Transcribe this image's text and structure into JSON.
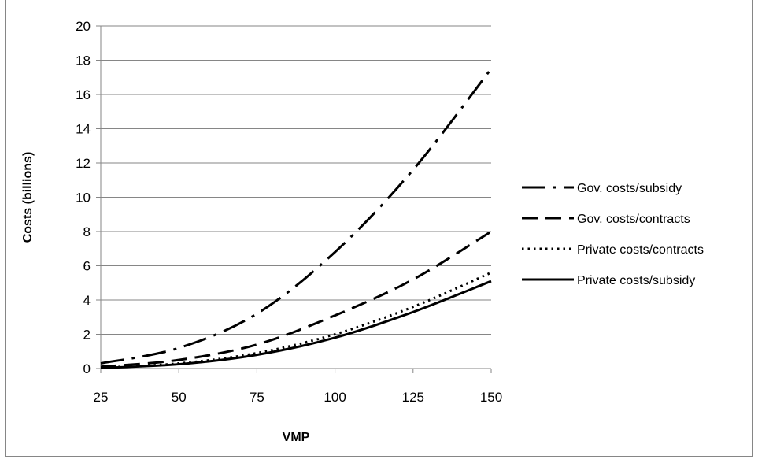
{
  "chart_data": {
    "type": "line",
    "title": "",
    "xlabel": "VMP",
    "ylabel": "Costs (billions)",
    "xlim": [
      25,
      150
    ],
    "ylim": [
      0,
      20
    ],
    "x_ticks": [
      25,
      50,
      75,
      100,
      125,
      150
    ],
    "y_ticks": [
      0,
      2,
      4,
      6,
      8,
      10,
      12,
      14,
      16,
      18,
      20
    ],
    "grid": "horizontal",
    "legend_position": "right",
    "x": [
      25,
      50,
      75,
      100,
      125,
      150
    ],
    "series": [
      {
        "name": "Gov. costs/subsidy",
        "style": "dash-dot",
        "color": "#000000",
        "values": [
          0.3,
          1.2,
          3.2,
          6.8,
          11.6,
          17.5
        ]
      },
      {
        "name": "Gov. costs/contracts",
        "style": "dashed",
        "color": "#000000",
        "values": [
          0.1,
          0.5,
          1.4,
          3.1,
          5.2,
          8.0
        ]
      },
      {
        "name": "Private costs/contracts",
        "style": "dotted",
        "color": "#000000",
        "values": [
          0.05,
          0.3,
          0.9,
          2.0,
          3.6,
          5.6
        ]
      },
      {
        "name": "Private costs/subsidy",
        "style": "solid",
        "color": "#000000",
        "values": [
          0.03,
          0.25,
          0.8,
          1.8,
          3.3,
          5.1
        ]
      }
    ]
  }
}
